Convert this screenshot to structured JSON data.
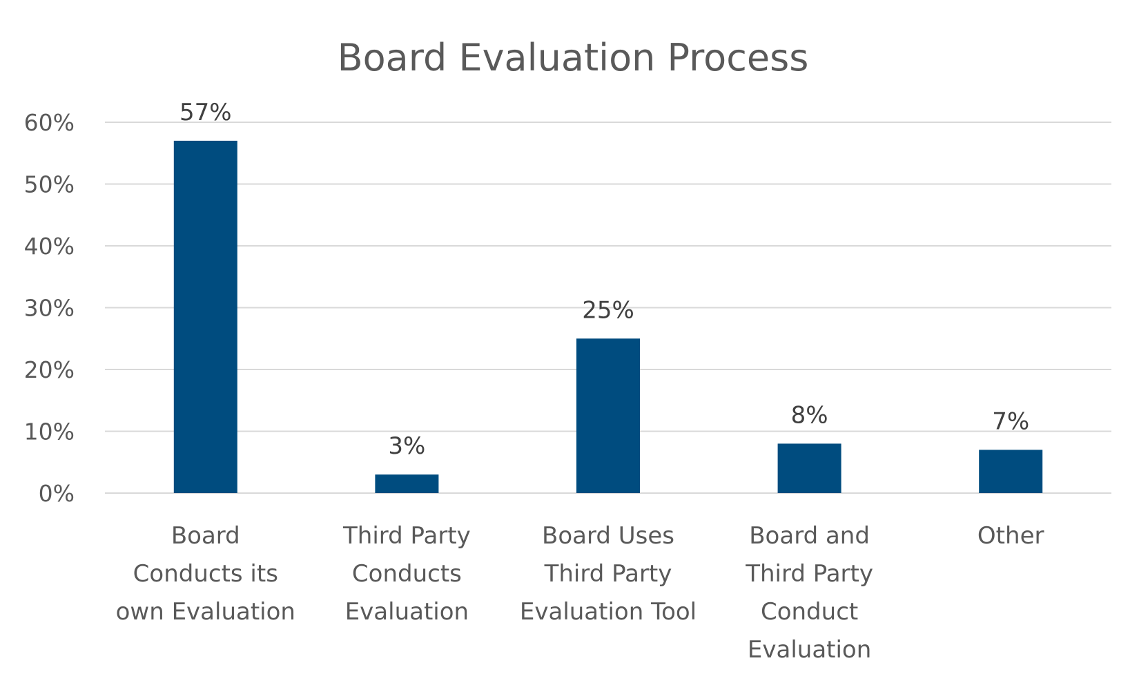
{
  "chart_data": {
    "type": "bar",
    "title": "Board Evaluation Process",
    "xlabel": "",
    "ylabel": "",
    "categories": [
      [
        "Board",
        "Conducts its",
        "own Evaluation"
      ],
      [
        "Third Party",
        "Conducts",
        "Evaluation"
      ],
      [
        "Board Uses",
        "Third Party",
        "Evaluation Tool"
      ],
      [
        "Board and",
        "Third Party",
        "Conduct",
        "Evaluation"
      ],
      [
        "Other"
      ]
    ],
    "values": [
      57,
      3,
      25,
      8,
      7
    ],
    "data_labels": [
      "57%",
      "3%",
      "25%",
      "8%",
      "7%"
    ],
    "ylim": [
      0,
      60
    ],
    "yticks": [
      0,
      10,
      20,
      30,
      40,
      50,
      60
    ],
    "ytick_labels": [
      "0%",
      "10%",
      "20%",
      "30%",
      "40%",
      "50%",
      "60%"
    ],
    "grid": true,
    "legend": "none",
    "bar_color": "#004c7f"
  }
}
